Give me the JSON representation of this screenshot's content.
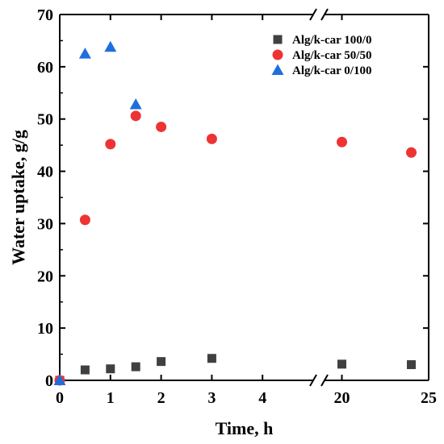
{
  "chart_data": {
    "type": "scatter",
    "title": "",
    "xlabel": "Time, h",
    "ylabel": "Water uptake, g/g",
    "ylim": [
      0,
      70
    ],
    "y_ticks": [
      "0",
      "10",
      "20",
      "30",
      "40",
      "50",
      "60",
      "70"
    ],
    "x_axis_broken": true,
    "x_segments": [
      {
        "range": [
          0,
          5
        ],
        "ticks": [
          "0",
          "1",
          "2",
          "3",
          "4"
        ]
      },
      {
        "range": [
          19,
          25
        ],
        "ticks": [
          "20",
          "25"
        ]
      }
    ],
    "grid": false,
    "legend_position": "top-right",
    "series": [
      {
        "name": "Alg/k-car 100/0",
        "marker": "square",
        "color": "#404040",
        "points": [
          {
            "x": 0,
            "y": 0
          },
          {
            "x": 0.5,
            "y": 2.0
          },
          {
            "x": 1,
            "y": 2.2
          },
          {
            "x": 1.5,
            "y": 2.6
          },
          {
            "x": 2,
            "y": 3.6
          },
          {
            "x": 3,
            "y": 4.2
          },
          {
            "x": 20,
            "y": 3.1
          },
          {
            "x": 24,
            "y": 3.0
          }
        ]
      },
      {
        "name": "Alg/k-car 50/50",
        "marker": "circle",
        "color": "#ee3333",
        "points": [
          {
            "x": 0,
            "y": 0
          },
          {
            "x": 0.5,
            "y": 30.7
          },
          {
            "x": 1,
            "y": 45.2
          },
          {
            "x": 1.5,
            "y": 50.6
          },
          {
            "x": 2,
            "y": 48.5
          },
          {
            "x": 3,
            "y": 46.2
          },
          {
            "x": 20,
            "y": 45.6
          },
          {
            "x": 24,
            "y": 43.6
          }
        ]
      },
      {
        "name": "Alg/k-car 0/100",
        "marker": "triangle",
        "color": "#1e6fdc",
        "points": [
          {
            "x": 0,
            "y": 0
          },
          {
            "x": 0.5,
            "y": 62.5
          },
          {
            "x": 1,
            "y": 63.8
          },
          {
            "x": 1.5,
            "y": 52.8
          }
        ]
      }
    ]
  }
}
